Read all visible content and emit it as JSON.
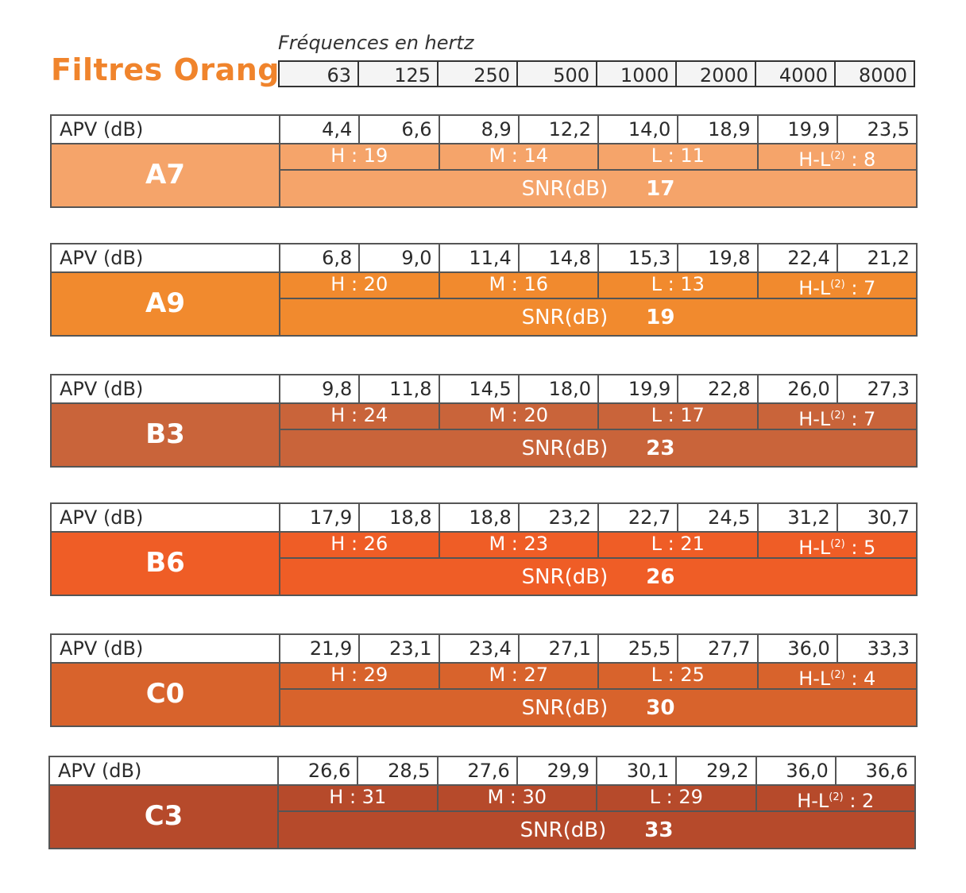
{
  "title": "Filtres Orange",
  "frequency_caption": "Fréquences en hertz",
  "frequencies": [
    "63",
    "125",
    "250",
    "500",
    "1000",
    "2000",
    "4000",
    "8000"
  ],
  "apv_label": "APV (dB)",
  "snr_label": "SNR(dB)",
  "filters": [
    {
      "name": "A7",
      "color": "#f5a46a",
      "apv": [
        "4,4",
        "6,6",
        "8,9",
        "12,2",
        "14,0",
        "18,9",
        "19,9",
        "23,5"
      ],
      "h": "H :  19",
      "m": "M :  14",
      "l": "L :  11",
      "hl_prefix": "H-L",
      "hl_sup": "(2)",
      "hl_suffix": " :  8",
      "snr": "17"
    },
    {
      "name": "A9",
      "color": "#f18a2e",
      "apv": [
        "6,8",
        "9,0",
        "11,4",
        "14,8",
        "15,3",
        "19,8",
        "22,4",
        "21,2"
      ],
      "h": "H :  20",
      "m": "M :  16",
      "l": "L :  13",
      "hl_prefix": "H-L",
      "hl_sup": "(2)",
      "hl_suffix": " :  7",
      "snr": "19"
    },
    {
      "name": "B3",
      "color": "#c9643a",
      "apv": [
        "9,8",
        "11,8",
        "14,5",
        "18,0",
        "19,9",
        "22,8",
        "26,0",
        "27,3"
      ],
      "h": "H :  24",
      "m": "M :  20",
      "l": "L :  17",
      "hl_prefix": "H-L",
      "hl_sup": "(2)",
      "hl_suffix": " :  7",
      "snr": "23"
    },
    {
      "name": "B6",
      "color": "#ef5d26",
      "apv": [
        "17,9",
        "18,8",
        "18,8",
        "23,2",
        "22,7",
        "24,5",
        "31,2",
        "30,7"
      ],
      "h": "H :  26",
      "m": "M :  23",
      "l": "L :  21",
      "hl_prefix": "H-L",
      "hl_sup": "(2)",
      "hl_suffix": " :  5",
      "snr": "26"
    },
    {
      "name": "C0",
      "color": "#d8632c",
      "apv": [
        "21,9",
        "23,1",
        "23,4",
        "27,1",
        "25,5",
        "27,7",
        "36,0",
        "33,3"
      ],
      "h": "H :  29",
      "m": "M :  27",
      "l": "L :  25",
      "hl_prefix": "H-L",
      "hl_sup": "(2)",
      "hl_suffix": " :  4",
      "snr": "30"
    },
    {
      "name": "C3",
      "color": "#b64a2b",
      "apv": [
        "26,6",
        "28,5",
        "27,6",
        "29,9",
        "30,1",
        "29,2",
        "36,0",
        "36,6"
      ],
      "h": "H :  31",
      "m": "M :  30",
      "l": "L :  29",
      "hl_prefix": "H-L",
      "hl_sup": "(2)",
      "hl_suffix": " :  2",
      "snr": "33"
    }
  ]
}
